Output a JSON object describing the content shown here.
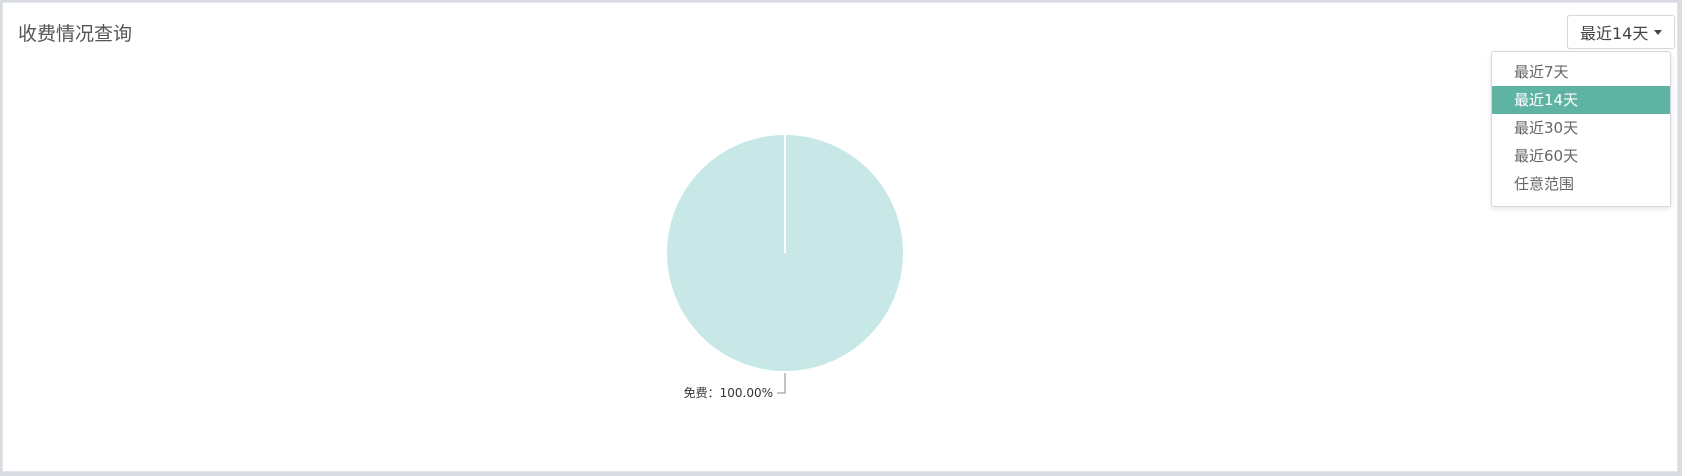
{
  "panel": {
    "title": "收费情况查询"
  },
  "range_selector": {
    "selected_label": "最近14天",
    "options": [
      {
        "label": "最近7天",
        "active": false
      },
      {
        "label": "最近14天",
        "active": true
      },
      {
        "label": "最近30天",
        "active": false
      },
      {
        "label": "最近60天",
        "active": false
      },
      {
        "label": "任意范围",
        "active": false
      }
    ]
  },
  "colors": {
    "accent": "#5fb3a3",
    "slice": "#c8e8e8"
  },
  "chart_data": {
    "type": "pie",
    "slices": [
      {
        "name": "免费",
        "value": 100.0,
        "label": "免费：100.00%"
      }
    ]
  }
}
